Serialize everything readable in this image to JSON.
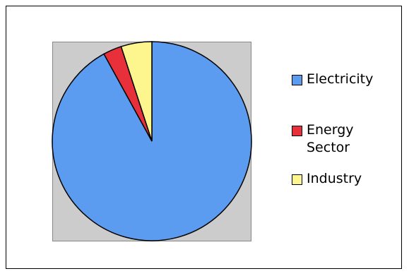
{
  "chart_data": {
    "type": "pie",
    "categories": [
      "Electricity",
      "Energy Sector",
      "Industry"
    ],
    "values": [
      92,
      3,
      5
    ],
    "colors": [
      "#5b9cf0",
      "#e8303a",
      "#fdf68e"
    ],
    "title": "",
    "legend_position": "right",
    "legend_labels": [
      "Electricity",
      "Energy\nSector",
      "Industry"
    ]
  }
}
